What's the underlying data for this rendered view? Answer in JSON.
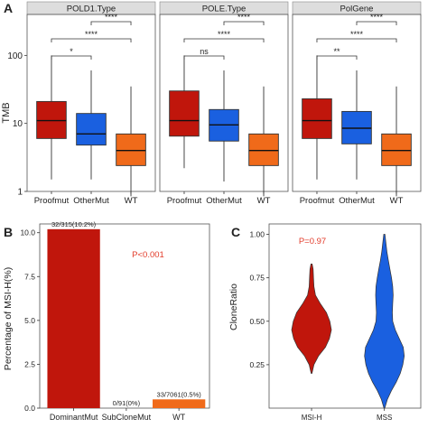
{
  "panel_letters": [
    "A",
    "B",
    "C"
  ],
  "colors": {
    "proofmut": "#c0160c",
    "othermut": "#1a60e0",
    "wt": "#f06a1a",
    "strip_bg": "#dddddd",
    "text_red": "#e23b2a"
  },
  "chart_data": [
    {
      "panel": "A",
      "type": "box",
      "ylabel": "TMB",
      "yscale": "log",
      "ylim": [
        1,
        400
      ],
      "yticks": [
        "1",
        "10",
        "100"
      ],
      "categories": [
        "Proofmut",
        "OtherMut",
        "WT"
      ],
      "facets": [
        {
          "title": "POLD1.Type",
          "boxes": [
            {
              "min": 1.5,
              "q1": 6.0,
              "median": 11.0,
              "q3": 21.0,
              "max": 100
            },
            {
              "min": 1.5,
              "q1": 4.8,
              "median": 7.0,
              "q3": 14.0,
              "max": 60
            },
            {
              "min": 0.8,
              "q1": 2.4,
              "median": 4.0,
              "q3": 7.0,
              "max": 35
            }
          ],
          "comparisons": [
            {
              "pair": [
                1,
                2
              ],
              "label": "*"
            },
            {
              "pair": [
                1,
                3
              ],
              "label": "****"
            },
            {
              "pair": [
                2,
                3
              ],
              "label": "****"
            }
          ]
        },
        {
          "title": "POLE.Type",
          "boxes": [
            {
              "min": 2.2,
              "q1": 6.5,
              "median": 11.0,
              "q3": 30.0,
              "max": 100
            },
            {
              "min": 1.4,
              "q1": 5.5,
              "median": 9.5,
              "q3": 16.0,
              "max": 60
            },
            {
              "min": 0.8,
              "q1": 2.4,
              "median": 4.0,
              "q3": 7.0,
              "max": 35
            }
          ],
          "comparisons": [
            {
              "pair": [
                1,
                2
              ],
              "label": "ns"
            },
            {
              "pair": [
                1,
                3
              ],
              "label": "****"
            },
            {
              "pair": [
                2,
                3
              ],
              "label": "****"
            }
          ]
        },
        {
          "title": "PolGene",
          "boxes": [
            {
              "min": 1.5,
              "q1": 6.0,
              "median": 11.0,
              "q3": 23.0,
              "max": 100
            },
            {
              "min": 1.5,
              "q1": 5.0,
              "median": 8.5,
              "q3": 15.0,
              "max": 60
            },
            {
              "min": 0.8,
              "q1": 2.4,
              "median": 4.0,
              "q3": 7.0,
              "max": 35
            }
          ],
          "comparisons": [
            {
              "pair": [
                1,
                2
              ],
              "label": "**"
            },
            {
              "pair": [
                1,
                3
              ],
              "label": "****"
            },
            {
              "pair": [
                2,
                3
              ],
              "label": "****"
            }
          ]
        }
      ]
    },
    {
      "panel": "B",
      "type": "bar",
      "ylabel": "Percentage of MSI-H(%)",
      "ylim": [
        0,
        10.5
      ],
      "yticks": [
        0.0,
        2.5,
        5.0,
        7.5,
        10.0
      ],
      "ytick_labels": [
        "0.0",
        "2.5",
        "5.0",
        "7.5",
        "10.0"
      ],
      "categories": [
        "DominantMut",
        "SubCloneMut",
        "WT"
      ],
      "values": [
        10.2,
        0.0,
        0.5
      ],
      "bar_labels": [
        "32/315(10.2%)",
        "0/91(0%)",
        "33/7061(0.5%)"
      ],
      "annotation": "P<0.001"
    },
    {
      "panel": "C",
      "type": "violin",
      "ylabel": "CloneRatio",
      "ylim": [
        0,
        1.06
      ],
      "yticks": [
        0.25,
        0.5,
        0.75,
        1.0
      ],
      "ytick_labels": [
        "0.25",
        "0.50",
        "0.75",
        "1.00"
      ],
      "categories": [
        "MSI-H",
        "MSS"
      ],
      "annotation": "P=0.97",
      "violins": [
        {
          "min": 0.2,
          "max": 0.83,
          "profile": [
            [
              0.2,
              0.02
            ],
            [
              0.25,
              0.12
            ],
            [
              0.3,
              0.35
            ],
            [
              0.35,
              0.7
            ],
            [
              0.4,
              0.9
            ],
            [
              0.45,
              1.0
            ],
            [
              0.5,
              0.92
            ],
            [
              0.55,
              0.75
            ],
            [
              0.6,
              0.45
            ],
            [
              0.65,
              0.2
            ],
            [
              0.7,
              0.12
            ],
            [
              0.75,
              0.1
            ],
            [
              0.8,
              0.08
            ],
            [
              0.83,
              0.03
            ]
          ]
        },
        {
          "min": 0.0,
          "max": 1.0,
          "profile": [
            [
              0.0,
              0.02
            ],
            [
              0.05,
              0.15
            ],
            [
              0.1,
              0.35
            ],
            [
              0.15,
              0.6
            ],
            [
              0.2,
              0.8
            ],
            [
              0.25,
              0.93
            ],
            [
              0.3,
              1.0
            ],
            [
              0.35,
              0.95
            ],
            [
              0.4,
              0.75
            ],
            [
              0.45,
              0.55
            ],
            [
              0.5,
              0.42
            ],
            [
              0.55,
              0.4
            ],
            [
              0.6,
              0.42
            ],
            [
              0.65,
              0.44
            ],
            [
              0.7,
              0.42
            ],
            [
              0.75,
              0.36
            ],
            [
              0.8,
              0.28
            ],
            [
              0.85,
              0.2
            ],
            [
              0.9,
              0.13
            ],
            [
              0.95,
              0.08
            ],
            [
              1.0,
              0.03
            ]
          ]
        }
      ]
    }
  ]
}
